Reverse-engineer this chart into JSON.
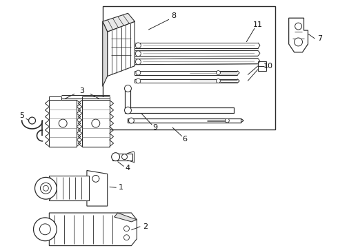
{
  "bg_color": "#ffffff",
  "line_color": "#2a2a2a",
  "figsize": [
    4.9,
    3.6
  ],
  "dpi": 100
}
